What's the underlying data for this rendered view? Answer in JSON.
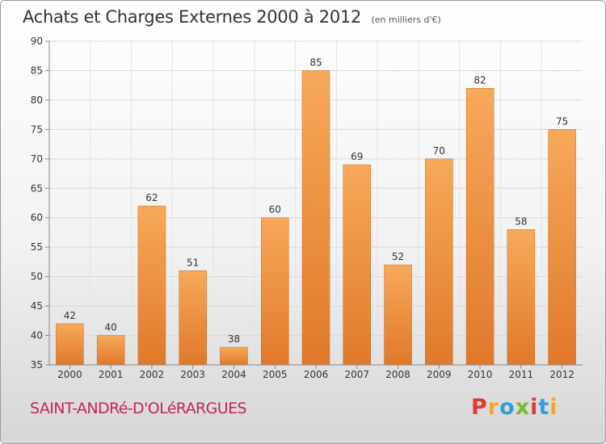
{
  "header": {
    "title": "Achats et Charges Externes 2000 à 2012",
    "unit": "(en milliers d'€)"
  },
  "footer": {
    "commune": "SAINT-ANDRé-D'OLéRARGUES",
    "brand": "Proxiti",
    "brand_colors": [
      "#e23a2f",
      "#f5a623",
      "#2e9fd8",
      "#7cb82f",
      "#e23a2f",
      "#2e9fd8",
      "#f5a623"
    ]
  },
  "chart_data": {
    "type": "bar",
    "categories": [
      "2000",
      "2001",
      "2002",
      "2003",
      "2004",
      "2005",
      "2006",
      "2007",
      "2008",
      "2009",
      "2010",
      "2011",
      "2012"
    ],
    "values": [
      42,
      40,
      62,
      51,
      38,
      60,
      85,
      69,
      52,
      70,
      82,
      58,
      75
    ],
    "ylim": [
      35,
      90
    ],
    "yticks": [
      35,
      40,
      45,
      50,
      55,
      60,
      65,
      70,
      75,
      80,
      85,
      90
    ],
    "grid": true,
    "bar_color_top": "#f7a95a",
    "bar_color_bottom": "#e0792a",
    "data_labels": true
  }
}
